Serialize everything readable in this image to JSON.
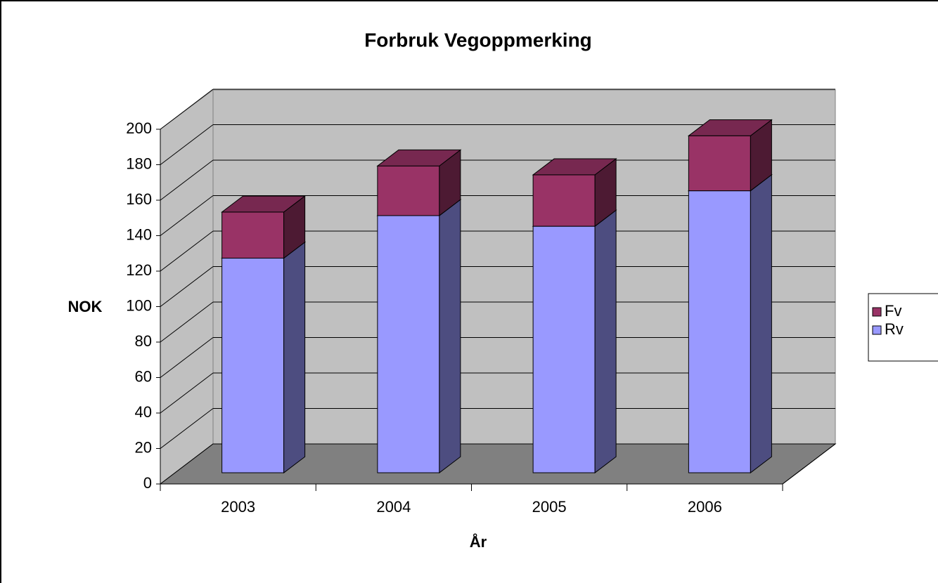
{
  "chart_data": {
    "type": "bar3d-stacked",
    "title": "Forbruk Vegoppmerking",
    "x_label": "År",
    "y_label": "NOK",
    "categories": [
      "2003",
      "2004",
      "2005",
      "2006"
    ],
    "series": [
      {
        "name": "Rv",
        "color": "#9999ff",
        "values": [
          121,
          145,
          139,
          159
        ]
      },
      {
        "name": "Fv",
        "color": "#993366",
        "values": [
          26,
          28,
          29,
          31
        ]
      }
    ],
    "ylim": [
      0,
      200
    ],
    "yticks": [
      0,
      20,
      40,
      60,
      80,
      100,
      120,
      140,
      160,
      180,
      200
    ],
    "grid": true,
    "legend": "right"
  }
}
